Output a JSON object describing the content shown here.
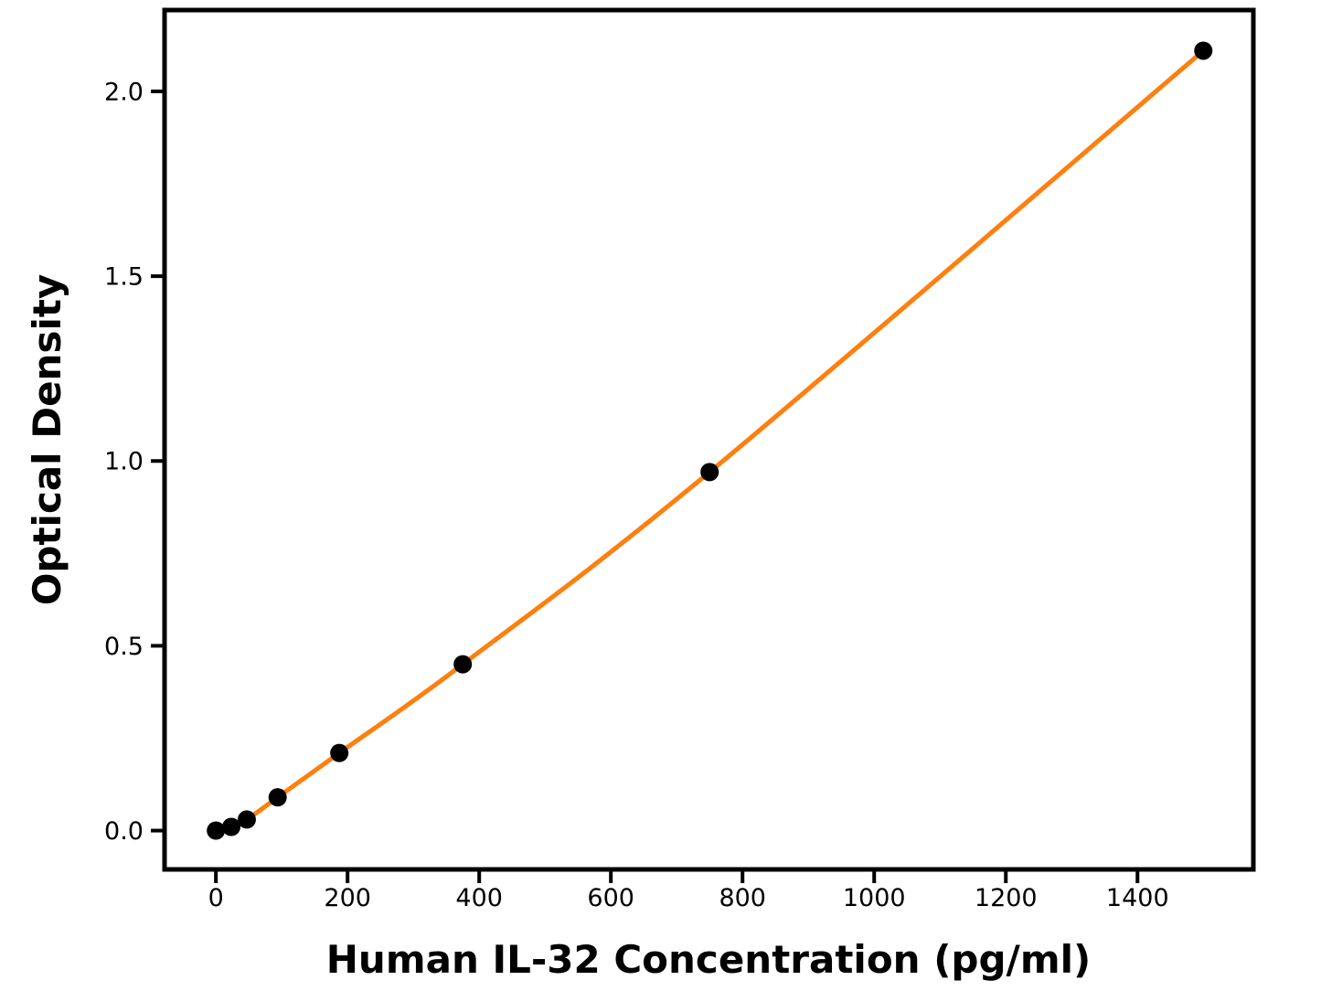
{
  "figure": {
    "background": "#ffffff"
  },
  "chart_data": {
    "type": "scatter",
    "title": "",
    "xlabel": "Human IL-32 Concentration (pg/ml)",
    "ylabel": "Optical Density",
    "x": [
      0,
      23.4,
      46.9,
      93.8,
      187.5,
      375,
      750,
      1500
    ],
    "y": [
      0.0,
      0.01,
      0.03,
      0.09,
      0.21,
      0.45,
      0.97,
      2.11
    ],
    "fit_line_through_points": true,
    "xlim": [
      -78,
      1576
    ],
    "ylim": [
      -0.105,
      2.22
    ],
    "xticks": {
      "values": [
        0,
        200,
        400,
        600,
        800,
        1000,
        1200,
        1400
      ],
      "labels": [
        "0",
        "200",
        "400",
        "600",
        "800",
        "1000",
        "1200",
        "1400"
      ]
    },
    "yticks": {
      "values": [
        0,
        0.5,
        1.0,
        1.5,
        2.0
      ],
      "labels": [
        "0.0",
        "0.5",
        "1.0",
        "1.5",
        "2.0"
      ]
    },
    "grid": false,
    "legend": false,
    "colors": {
      "line": "#ff7f0e",
      "marker": "#000000",
      "axis": "#000000",
      "text": "#000000",
      "background": "#ffffff"
    }
  }
}
